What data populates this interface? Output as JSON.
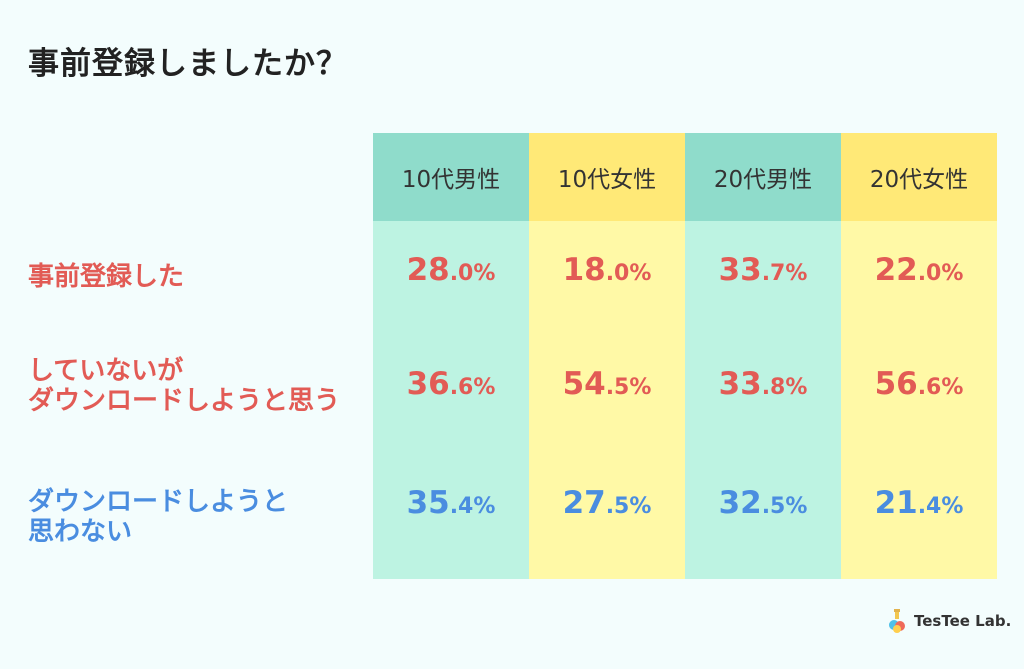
{
  "title": "事前登録しましたか？",
  "colors": {
    "teal": "#8fdccb",
    "teal_light": "#bdf3e2",
    "yellow": "#ffe977",
    "yellow_light": "#fff9a6",
    "red": "#e25b55",
    "blue": "#4a8de0"
  },
  "chart_data": {
    "type": "table",
    "columns": [
      "10代男性",
      "10代女性",
      "20代男性",
      "20代女性"
    ],
    "rows": [
      {
        "label_lines": [
          "事前登録した"
        ],
        "color": "#e25b55",
        "values": [
          [
            "28",
            ".0%"
          ],
          [
            "18",
            ".0%"
          ],
          [
            "33",
            ".7%"
          ],
          [
            "22",
            ".0%"
          ]
        ]
      },
      {
        "label_lines": [
          "していないが",
          "ダウンロードしようと思う"
        ],
        "color": "#e25b55",
        "values": [
          [
            "36",
            ".6%"
          ],
          [
            "54",
            ".5%"
          ],
          [
            "33",
            ".8%"
          ],
          [
            "56",
            ".6%"
          ]
        ]
      },
      {
        "label_lines": [
          "ダウンロードしようと",
          "思わない"
        ],
        "color": "#4a8de0",
        "values": [
          [
            "35",
            ".4%"
          ],
          [
            "27",
            ".5%"
          ],
          [
            "32",
            ".5%"
          ],
          [
            "21",
            ".4%"
          ]
        ]
      }
    ]
  },
  "logo": {
    "text": "TesTee Lab."
  }
}
